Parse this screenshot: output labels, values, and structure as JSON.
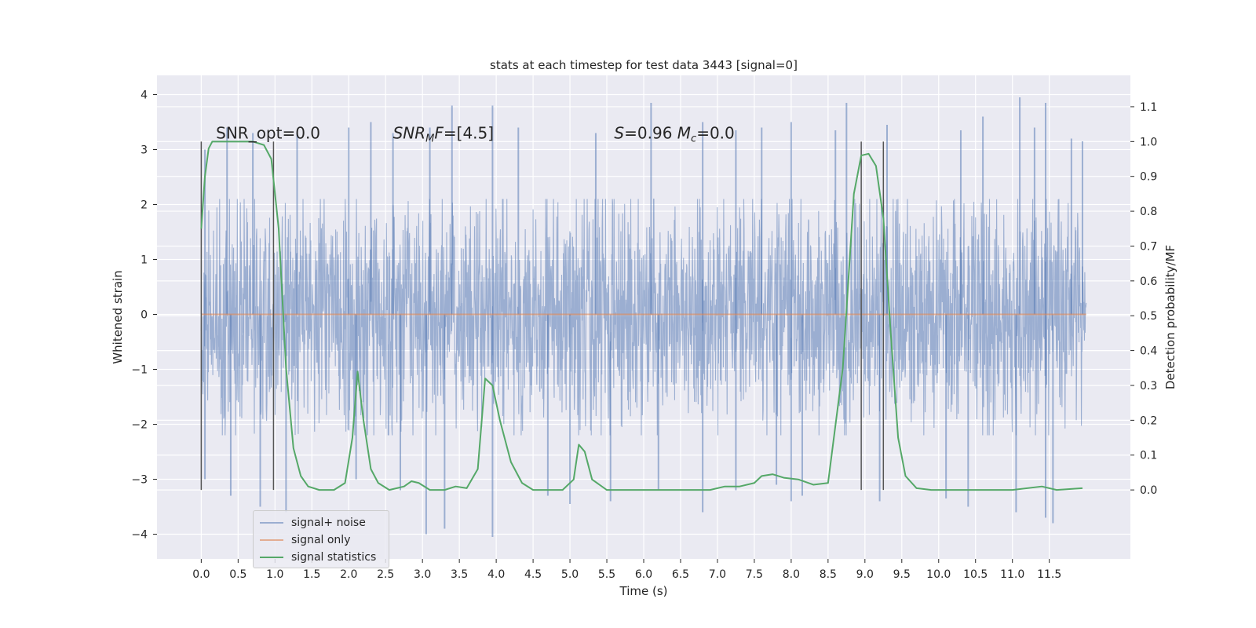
{
  "chart_data": {
    "type": "line",
    "title": "stats at each timestep for test data 3443 [signal=0]",
    "xlabel": "Time (s)",
    "ylabel": "Whitened strain",
    "y2label": "Detection probability/MF",
    "xlim": [
      -0.6,
      12.6
    ],
    "ylim": [
      -4.45,
      4.35
    ],
    "y2lim": [
      -0.198,
      1.19
    ],
    "x_ticks": [
      "0.0",
      "0.5",
      "1.0",
      "1.5",
      "2.0",
      "2.5",
      "3.0",
      "3.5",
      "4.0",
      "4.5",
      "5.0",
      "5.5",
      "6.0",
      "6.5",
      "7.0",
      "7.5",
      "8.0",
      "8.5",
      "9.0",
      "9.5",
      "10.0",
      "10.5",
      "11.0",
      "11.5"
    ],
    "y_ticks": [
      4,
      3,
      2,
      1,
      0,
      -1,
      -2,
      -3,
      -4
    ],
    "y2_ticks": [
      "1.1",
      "1.0",
      "0.9",
      "0.8",
      "0.7",
      "0.6",
      "0.5",
      "0.4",
      "0.3",
      "0.2",
      "0.1",
      "0.0"
    ],
    "grid": true,
    "legend_placement": "lower-left",
    "annotations": [
      {
        "html": "SNR_opt=0.0",
        "x": 0.2,
        "y": 3.2
      },
      {
        "html": "<tspan font-style=\"italic\">SNR</tspan><tspan font-style=\"italic\" font-size=\"13\" dy=\"4\">M</tspan><tspan font-style=\"italic\" dy=\"-4\">F</tspan>=[4.5]",
        "x": 2.6,
        "y": 3.2
      },
      {
        "html": "<tspan font-style=\"italic\">S</tspan>=0.96   <tspan font-style=\"italic\">M</tspan><tspan font-style=\"italic\" font-size=\"13\" dy=\"4\">c</tspan><tspan dy=\"-4\">=0.0</tspan>",
        "x": 5.6,
        "y": 3.2
      }
    ],
    "vlines": [
      {
        "x": 0.0,
        "y2_range": [
          0.0,
          1.0
        ]
      },
      {
        "x": 0.98,
        "y2_range": [
          0.0,
          1.0
        ]
      },
      {
        "x": 8.95,
        "y2_range": [
          0.0,
          1.0
        ]
      },
      {
        "x": 9.25,
        "y2_range": [
          0.0,
          1.0
        ]
      }
    ],
    "series": [
      {
        "name": "signal+ noise",
        "color": "#4c72b0",
        "opacity": 0.5,
        "axis": "left",
        "x_range": [
          0.0,
          12.0
        ],
        "envelope_rms": 1.0,
        "typical_peak": [
          -2.0,
          1.9
        ],
        "spikes_upper": [
          [
            0.05,
            3.0
          ],
          [
            0.35,
            3.4
          ],
          [
            0.7,
            3.3
          ],
          [
            1.3,
            3.3
          ],
          [
            2.0,
            3.4
          ],
          [
            2.3,
            3.5
          ],
          [
            2.6,
            3.3
          ],
          [
            3.1,
            3.4
          ],
          [
            3.4,
            3.8
          ],
          [
            3.95,
            3.8
          ],
          [
            4.3,
            3.4
          ],
          [
            5.35,
            3.3
          ],
          [
            6.1,
            3.85
          ],
          [
            6.8,
            3.5
          ],
          [
            7.25,
            3.35
          ],
          [
            7.6,
            3.4
          ],
          [
            8.0,
            3.5
          ],
          [
            8.6,
            3.35
          ],
          [
            8.75,
            3.85
          ],
          [
            9.3,
            3.45
          ],
          [
            10.3,
            3.35
          ],
          [
            10.6,
            3.6
          ],
          [
            11.1,
            3.95
          ],
          [
            11.3,
            3.4
          ],
          [
            11.45,
            3.85
          ],
          [
            11.8,
            3.2
          ],
          [
            11.95,
            3.15
          ]
        ],
        "spikes_lower": [
          [
            0.05,
            -3.0
          ],
          [
            0.4,
            -3.3
          ],
          [
            0.8,
            -3.5
          ],
          [
            1.15,
            -3.6
          ],
          [
            2.1,
            -3.0
          ],
          [
            2.7,
            -3.2
          ],
          [
            3.05,
            -4.0
          ],
          [
            3.3,
            -3.9
          ],
          [
            3.95,
            -4.05
          ],
          [
            4.7,
            -3.3
          ],
          [
            5.0,
            -3.45
          ],
          [
            5.55,
            -3.4
          ],
          [
            6.2,
            -3.2
          ],
          [
            6.8,
            -3.6
          ],
          [
            7.25,
            -3.2
          ],
          [
            7.8,
            -3.1
          ],
          [
            8.0,
            -3.4
          ],
          [
            8.15,
            -3.3
          ],
          [
            9.2,
            -3.4
          ],
          [
            10.1,
            -3.35
          ],
          [
            10.4,
            -3.5
          ],
          [
            11.05,
            -3.6
          ],
          [
            11.45,
            -3.7
          ],
          [
            11.55,
            -3.8
          ]
        ]
      },
      {
        "name": "signal only",
        "color": "#dd8452",
        "axis": "left",
        "x": [
          0.0,
          12.0
        ],
        "y": [
          0.0,
          0.0
        ]
      },
      {
        "name": "signal statistics",
        "color": "#55a868",
        "axis": "right",
        "x": [
          0.0,
          0.05,
          0.1,
          0.15,
          0.2,
          0.3,
          0.5,
          0.7,
          0.85,
          0.95,
          1.05,
          1.15,
          1.25,
          1.35,
          1.45,
          1.6,
          1.8,
          1.95,
          2.05,
          2.12,
          2.2,
          2.3,
          2.4,
          2.55,
          2.75,
          2.85,
          2.95,
          3.1,
          3.3,
          3.45,
          3.6,
          3.75,
          3.85,
          3.95,
          4.05,
          4.2,
          4.35,
          4.5,
          4.7,
          4.9,
          5.05,
          5.12,
          5.2,
          5.3,
          5.5,
          6.0,
          6.5,
          6.9,
          7.1,
          7.3,
          7.5,
          7.6,
          7.75,
          7.9,
          8.1,
          8.3,
          8.5,
          8.7,
          8.85,
          8.95,
          9.05,
          9.15,
          9.25,
          9.35,
          9.45,
          9.55,
          9.7,
          9.9,
          10.3,
          11.0,
          11.4,
          11.6,
          11.95
        ],
        "y": [
          0.75,
          0.9,
          0.98,
          1.0,
          1.0,
          1.0,
          1.0,
          1.0,
          0.99,
          0.95,
          0.75,
          0.35,
          0.12,
          0.04,
          0.01,
          0.0,
          0.0,
          0.02,
          0.15,
          0.34,
          0.2,
          0.06,
          0.02,
          0.0,
          0.01,
          0.025,
          0.02,
          0.0,
          0.0,
          0.01,
          0.005,
          0.06,
          0.32,
          0.3,
          0.2,
          0.08,
          0.02,
          0.0,
          0.0,
          0.0,
          0.03,
          0.13,
          0.11,
          0.03,
          0.0,
          0.0,
          0.0,
          0.0,
          0.01,
          0.01,
          0.02,
          0.04,
          0.045,
          0.035,
          0.03,
          0.015,
          0.02,
          0.35,
          0.85,
          0.96,
          0.965,
          0.93,
          0.78,
          0.45,
          0.15,
          0.04,
          0.005,
          0.0,
          0.0,
          0.0,
          0.01,
          0.0,
          0.005
        ]
      }
    ]
  }
}
